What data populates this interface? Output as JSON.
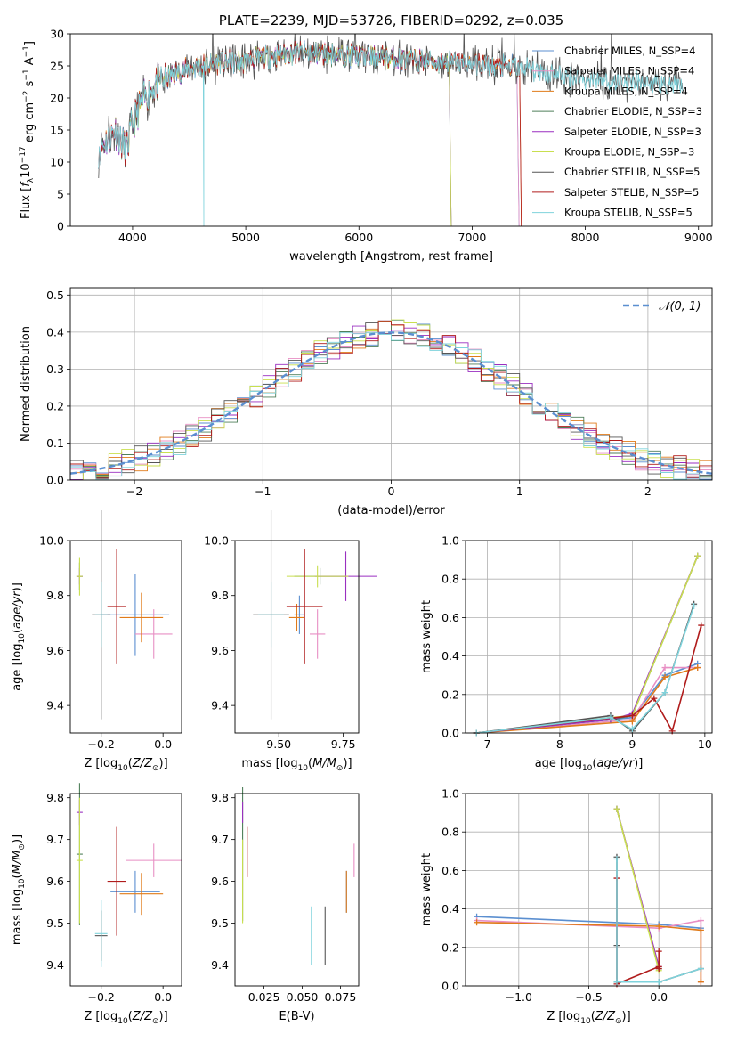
{
  "chart_data": [
    {
      "type": "line",
      "title": "PLATE=2239, MJD=53726, FIBERID=0292, z=0.035",
      "xlabel": "wavelength [Angstrom, rest frame]",
      "ylabel": "Flux [f_λ10^-17 erg cm^-2 s^-1 A^-1]",
      "xlim": [
        3450,
        9120
      ],
      "ylim": [
        0,
        30
      ],
      "xticks": [
        "4000",
        "5000",
        "6000",
        "7000",
        "8000",
        "9000"
      ],
      "yticks": [
        "0",
        "5",
        "10",
        "15",
        "20",
        "25",
        "30"
      ],
      "legend_position": "top-right",
      "spectrum_anchors": {
        "x": [
          3700,
          3750,
          3800,
          3850,
          3900,
          3950,
          4000,
          4100,
          4200,
          4300,
          4400,
          4500,
          4600,
          4700,
          4800,
          4900,
          5000,
          5200,
          5400,
          5600,
          5800,
          6000,
          6200,
          6400,
          6600,
          6800,
          7000,
          7200,
          7400,
          7600,
          7800,
          8000,
          8200,
          8400,
          8600,
          8850
        ],
        "y": [
          12,
          13,
          14,
          15,
          13,
          12,
          16,
          20,
          22,
          23,
          24,
          24.5,
          25,
          25.3,
          25.5,
          25.6,
          25.7,
          26.5,
          27,
          27,
          26.8,
          26.5,
          26.3,
          26.0,
          25.8,
          25.5,
          25.3,
          25.0,
          24.8,
          24.2,
          23.5,
          23.0,
          22.7,
          22.5,
          22.0,
          21.7
        ]
      },
      "series": [
        {
          "name": "Chabrier MILES, N_SSP=4",
          "color": "#5b8fd0",
          "range": [
            3700,
            7400
          ]
        },
        {
          "name": "Salpeter MILES, N_SSP=4",
          "color": "#e88fc4",
          "range": [
            3700,
            7400
          ]
        },
        {
          "name": "Kroupa MILES, N_SSP=4",
          "color": "#e07b1a",
          "range": [
            3700,
            7420
          ]
        },
        {
          "name": "Chabrier ELODIE, N_SSP=3",
          "color": "#4f7f5a",
          "range": [
            3700,
            6800
          ]
        },
        {
          "name": "Salpeter ELODIE, N_SSP=3",
          "color": "#9a2fc0",
          "range": [
            3700,
            6800
          ]
        },
        {
          "name": "Kroupa ELODIE, N_SSP=3",
          "color": "#c9df4f",
          "range": [
            3900,
            6800
          ]
        },
        {
          "name": "Chabrier STELIB, N_SSP=5",
          "color": "#555555",
          "range": [
            3700,
            8860
          ]
        },
        {
          "name": "Salpeter STELIB, N_SSP=5",
          "color": "#b01c1c",
          "range": [
            3700,
            7420
          ]
        },
        {
          "name": "Kroupa STELIB, N_SSP=5",
          "color": "#7fd3dc",
          "range": [
            3700,
            8860
          ]
        }
      ]
    },
    {
      "type": "line",
      "xlabel": "(data-model)/error",
      "ylabel": "Normed distribution",
      "xlim": [
        -2.5,
        2.5
      ],
      "ylim": [
        0,
        0.52
      ],
      "xticks": [
        "−2",
        "−1",
        "0",
        "1",
        "2"
      ],
      "yticks": [
        "0.0",
        "0.1",
        "0.2",
        "0.3",
        "0.4",
        "0.5"
      ],
      "grid": true,
      "legend_position": "top-right",
      "gaussian": {
        "name": "𝒩(0, 1)",
        "color": "#5b8fd0"
      }
    },
    {
      "type": "scatter",
      "xlabel": "Z [log10(Z/Z⊙)]",
      "ylabel": "age  [log10(age/yr)]",
      "xlim": [
        -0.3,
        0.06
      ],
      "ylim": [
        9.3,
        10.0
      ],
      "xticks": [
        "−0.2",
        "0.0"
      ],
      "yticks": [
        "9.4",
        "9.6",
        "9.8",
        "10.0"
      ],
      "points": [
        {
          "x": -0.09,
          "y": 9.73,
          "xe": 0.11,
          "ye": 0.15,
          "color": "#5b8fd0"
        },
        {
          "x": -0.03,
          "y": 9.66,
          "xe": 0.06,
          "ye": 0.09,
          "color": "#e88fc4"
        },
        {
          "x": -0.07,
          "y": 9.72,
          "xe": 0.07,
          "ye": 0.09,
          "color": "#e07b1a"
        },
        {
          "x": -0.27,
          "y": 9.87,
          "xe": 0.01,
          "ye": 0.05,
          "color": "#4f7f5a"
        },
        {
          "x": -0.27,
          "y": 9.87,
          "xe": 0.01,
          "ye": 0.03,
          "color": "#9a2fc0"
        },
        {
          "x": -0.27,
          "y": 9.87,
          "xe": 0.01,
          "ye": 0.07,
          "color": "#c9df4f"
        },
        {
          "x": -0.2,
          "y": 9.73,
          "xe": 0.03,
          "ye": 0.38,
          "color": "#555555"
        },
        {
          "x": -0.15,
          "y": 9.76,
          "xe": 0.03,
          "ye": 0.21,
          "color": "#b01c1c"
        },
        {
          "x": -0.2,
          "y": 9.73,
          "xe": 0.02,
          "ye": 0.12,
          "color": "#7fd3dc"
        }
      ]
    },
    {
      "type": "scatter",
      "xlabel": "mass [log10(M/M⊙)]",
      "xlim": [
        9.33,
        9.81
      ],
      "ylim": [
        9.3,
        10.0
      ],
      "xticks": [
        "9.50",
        "9.75"
      ],
      "yticks": [
        "9.4",
        "9.6",
        "9.8",
        "10.0"
      ],
      "points": [
        {
          "x": 9.58,
          "y": 9.73,
          "xe": 0.02,
          "ye": 0.07,
          "color": "#5b8fd0"
        },
        {
          "x": 9.65,
          "y": 9.66,
          "xe": 0.03,
          "ye": 0.09,
          "color": "#e88fc4"
        },
        {
          "x": 9.57,
          "y": 9.72,
          "xe": 0.03,
          "ye": 0.05,
          "color": "#e07b1a"
        },
        {
          "x": 9.66,
          "y": 9.87,
          "xe": 0.1,
          "ye": 0.03,
          "color": "#4f7f5a"
        },
        {
          "x": 9.76,
          "y": 9.87,
          "xe": 0.12,
          "ye": 0.09,
          "color": "#9a2fc0"
        },
        {
          "x": 9.65,
          "y": 9.87,
          "xe": 0.12,
          "ye": 0.04,
          "color": "#c9df4f"
        },
        {
          "x": 9.47,
          "y": 9.73,
          "xe": 0.07,
          "ye": 0.38,
          "color": "#555555"
        },
        {
          "x": 9.6,
          "y": 9.76,
          "xe": 0.07,
          "ye": 0.21,
          "color": "#b01c1c"
        },
        {
          "x": 9.47,
          "y": 9.73,
          "xe": 0.05,
          "ye": 0.12,
          "color": "#7fd3dc"
        }
      ]
    },
    {
      "type": "line",
      "xlabel": "age  [log10(age/yr)]",
      "ylabel": "mass weight",
      "xlim": [
        6.7,
        10.1
      ],
      "ylim": [
        0,
        1
      ],
      "xticks": [
        "7",
        "8",
        "9",
        "10"
      ],
      "yticks": [
        "0.0",
        "0.2",
        "0.4",
        "0.6",
        "0.8",
        "1.0"
      ],
      "grid": true,
      "series": [
        {
          "color": "#5b8fd0",
          "x": [
            6.85,
            9.0,
            9.45,
            9.9
          ],
          "y": [
            0.0,
            0.08,
            0.3,
            0.36
          ]
        },
        {
          "color": "#e88fc4",
          "x": [
            6.85,
            9.0,
            9.45,
            9.9
          ],
          "y": [
            0.0,
            0.07,
            0.34,
            0.34
          ]
        },
        {
          "color": "#e07b1a",
          "x": [
            6.85,
            9.0,
            9.45,
            9.9
          ],
          "y": [
            0.0,
            0.06,
            0.29,
            0.34
          ]
        },
        {
          "color": "#4f7f5a",
          "x": [
            6.85,
            8.7,
            9.0,
            9.9
          ],
          "y": [
            0.0,
            0.07,
            0.09,
            0.92
          ]
        },
        {
          "color": "#9a2fc0",
          "x": [
            6.85,
            8.7,
            9.0,
            9.9
          ],
          "y": [
            0.0,
            0.07,
            0.1,
            0.92
          ]
        },
        {
          "color": "#c9df4f",
          "x": [
            6.85,
            8.7,
            9.0,
            9.9
          ],
          "y": [
            0.0,
            0.08,
            0.09,
            0.92
          ]
        },
        {
          "color": "#555555",
          "x": [
            6.85,
            8.7,
            9.0,
            9.45,
            9.85
          ],
          "y": [
            0.0,
            0.09,
            0.01,
            0.21,
            0.67
          ]
        },
        {
          "color": "#b01c1c",
          "x": [
            6.85,
            9.0,
            9.3,
            9.55,
            9.95
          ],
          "y": [
            0.0,
            0.09,
            0.18,
            0.01,
            0.56
          ]
        },
        {
          "color": "#7fd3dc",
          "x": [
            6.85,
            8.7,
            9.0,
            9.45,
            9.85
          ],
          "y": [
            0.0,
            0.08,
            0.02,
            0.21,
            0.66
          ]
        }
      ]
    },
    {
      "type": "scatter",
      "xlabel": "Z [log10(Z/Z⊙)]",
      "ylabel": "mass [log10(M/M⊙)]",
      "xlim": [
        -0.3,
        0.06
      ],
      "ylim": [
        9.35,
        9.81
      ],
      "xticks": [
        "−0.2",
        "0.0"
      ],
      "yticks": [
        "9.4",
        "9.5",
        "9.6",
        "9.7",
        "9.8"
      ],
      "points": [
        {
          "x": -0.09,
          "y": 9.575,
          "xe": 0.08,
          "ye": 0.05,
          "color": "#5b8fd0"
        },
        {
          "x": -0.03,
          "y": 9.65,
          "xe": 0.09,
          "ye": 0.04,
          "color": "#e88fc4"
        },
        {
          "x": -0.07,
          "y": 9.57,
          "xe": 0.07,
          "ye": 0.05,
          "color": "#e07b1a"
        },
        {
          "x": -0.27,
          "y": 9.665,
          "xe": 0.01,
          "ye": 0.17,
          "color": "#4f7f5a"
        },
        {
          "x": -0.27,
          "y": 9.765,
          "xe": 0.01,
          "ye": 0.03,
          "color": "#9a2fc0"
        },
        {
          "x": -0.27,
          "y": 9.65,
          "xe": 0.01,
          "ye": 0.15,
          "color": "#c9df4f"
        },
        {
          "x": -0.2,
          "y": 9.47,
          "xe": 0.02,
          "ye": 0.06,
          "color": "#555555"
        },
        {
          "x": -0.15,
          "y": 9.6,
          "xe": 0.03,
          "ye": 0.13,
          "color": "#b01c1c"
        },
        {
          "x": -0.2,
          "y": 9.475,
          "xe": 0.02,
          "ye": 0.08,
          "color": "#7fd3dc"
        }
      ]
    },
    {
      "type": "scatter",
      "xlabel": "E(B-V)",
      "xlim": [
        0.006,
        0.087
      ],
      "ylim": [
        9.35,
        9.81
      ],
      "xticks": [
        "0.025",
        "0.050",
        "0.075"
      ],
      "yticks": [
        "9.4",
        "9.5",
        "9.6",
        "9.7",
        "9.8"
      ],
      "points": [
        {
          "x": 0.079,
          "y": 9.575,
          "ye": 0.05,
          "color": "#5b8fd0"
        },
        {
          "x": 0.084,
          "y": 9.65,
          "ye": 0.04,
          "color": "#e88fc4"
        },
        {
          "x": 0.079,
          "y": 9.575,
          "ye": 0.05,
          "color": "#e07b1a"
        },
        {
          "x": 0.011,
          "y": 9.665,
          "ye": 0.16,
          "color": "#4f7f5a"
        },
        {
          "x": 0.011,
          "y": 9.765,
          "ye": 0.025,
          "color": "#9a2fc0"
        },
        {
          "x": 0.011,
          "y": 9.6,
          "ye": 0.1,
          "color": "#c9df4f"
        },
        {
          "x": 0.065,
          "y": 9.47,
          "ye": 0.07,
          "color": "#555555"
        },
        {
          "x": 0.014,
          "y": 9.67,
          "ye": 0.06,
          "color": "#b01c1c"
        },
        {
          "x": 0.056,
          "y": 9.47,
          "ye": 0.07,
          "color": "#7fd3dc"
        }
      ]
    },
    {
      "type": "line",
      "xlabel": "Z [log10(Z/Z⊙)]",
      "ylabel": "mass weight",
      "xlim": [
        -1.38,
        0.38
      ],
      "ylim": [
        0,
        1
      ],
      "xticks": [
        "−1.0",
        "−0.5",
        "0.0"
      ],
      "yticks": [
        "0.0",
        "0.2",
        "0.4",
        "0.6",
        "0.8",
        "1.0"
      ],
      "grid": true,
      "series": [
        {
          "color": "#5b8fd0",
          "x": [
            -1.3,
            0.0,
            0.3
          ],
          "y": [
            0.36,
            0.32,
            0.3
          ]
        },
        {
          "color": "#e88fc4",
          "x": [
            -1.3,
            0.0,
            0.3,
            0.3
          ],
          "y": [
            0.34,
            0.3,
            0.34,
            0.02
          ]
        },
        {
          "color": "#e07b1a",
          "x": [
            -1.3,
            0.0,
            0.3,
            0.3
          ],
          "y": [
            0.33,
            0.31,
            0.29,
            0.02
          ]
        },
        {
          "color": "#4f7f5a",
          "x": [
            -0.3,
            0.0
          ],
          "y": [
            0.92,
            0.09
          ]
        },
        {
          "color": "#9a2fc0",
          "x": [
            -0.3,
            0.0
          ],
          "y": [
            0.92,
            0.1
          ]
        },
        {
          "color": "#c9df4f",
          "x": [
            -0.3,
            0.0
          ],
          "y": [
            0.92,
            0.08
          ]
        },
        {
          "color": "#555555",
          "x": [
            -0.3,
            -0.3,
            -0.3,
            0.0,
            0.3
          ],
          "y": [
            0.67,
            0.21,
            0.02,
            0.02,
            0.09
          ]
        },
        {
          "color": "#b01c1c",
          "x": [
            -0.3,
            -0.3,
            0.0,
            0.0,
            0.0
          ],
          "y": [
            0.56,
            0.01,
            0.1,
            0.18,
            0.09
          ]
        },
        {
          "color": "#7fd3dc",
          "x": [
            -0.3,
            -0.3,
            0.0,
            0.3
          ],
          "y": [
            0.66,
            0.02,
            0.02,
            0.09
          ]
        }
      ]
    }
  ]
}
